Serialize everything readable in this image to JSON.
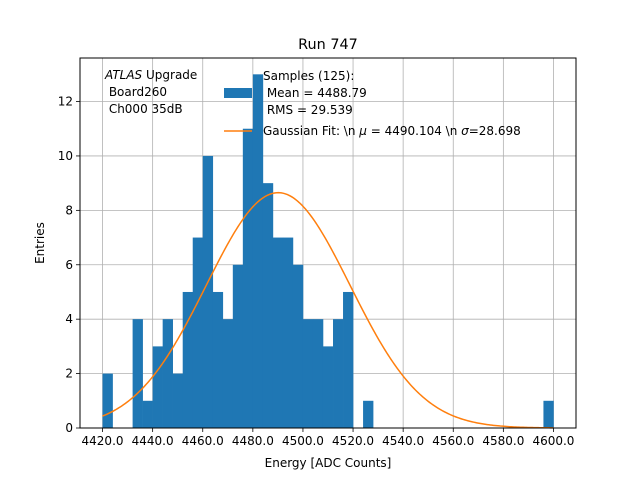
{
  "chart_data": {
    "type": "bar",
    "title": "Run 747",
    "xlabel": "Energy [ADC Counts]",
    "ylabel": "Entries",
    "xlim": [
      4411,
      4609
    ],
    "ylim": [
      0,
      13.6
    ],
    "grid": true,
    "legend_position": "top-center",
    "x_ticks": [
      4420.0,
      4440.0,
      4460.0,
      4480.0,
      4500.0,
      4520.0,
      4540.0,
      4560.0,
      4580.0,
      4600.0
    ],
    "x_tick_labels": [
      "4420.0",
      "4440.0",
      "4460.0",
      "4480.0",
      "4500.0",
      "4520.0",
      "4540.0",
      "4560.0",
      "4580.0",
      "4600.0"
    ],
    "y_ticks": [
      0,
      2,
      4,
      6,
      8,
      10,
      12
    ],
    "y_tick_labels": [
      "0",
      "2",
      "4",
      "6",
      "8",
      "10",
      "12"
    ],
    "annotation": {
      "line1_italic": "ATLAS",
      "line1_rest": " Upgrade",
      "line2": " Board260",
      "line3": " Ch000 35dB"
    },
    "series": [
      {
        "kind": "histogram",
        "legend": [
          "Samples (125):",
          " Mean = 4488.79",
          " RMS = 29.539"
        ],
        "color": "#1f77b4",
        "bin_edges": [
          4420,
          4424,
          4428,
          4432,
          4436,
          4440,
          4444,
          4448,
          4452,
          4456,
          4460,
          4464,
          4468,
          4472,
          4476,
          4480,
          4484,
          4488,
          4492,
          4496,
          4500,
          4504,
          4508,
          4512,
          4516,
          4520,
          4524,
          4528,
          4532,
          4536,
          4540,
          4544,
          4548,
          4552,
          4556,
          4560,
          4564,
          4568,
          4572,
          4576,
          4580,
          4584,
          4588,
          4592,
          4596,
          4600
        ],
        "counts": [
          2,
          0,
          0,
          4,
          1,
          3,
          4,
          2,
          5,
          7,
          10,
          5,
          4,
          6,
          11,
          13,
          9,
          7,
          7,
          6,
          4,
          4,
          3,
          4,
          5,
          0,
          1,
          0,
          0,
          0,
          0,
          0,
          0,
          0,
          0,
          0,
          0,
          0,
          0,
          0,
          0,
          0,
          0,
          0,
          1
        ]
      },
      {
        "kind": "line",
        "legend_text": "Gaussian Fit: \\n ",
        "legend_mu": "μ",
        "legend_mid": " = 4490.104 \\n ",
        "legend_sigma": "σ",
        "legend_end": "=28.698",
        "color": "#ff7f0e",
        "mu": 4490.104,
        "sigma": 28.698,
        "amplitude": 8.65,
        "x_range": [
          4420,
          4600
        ]
      }
    ]
  }
}
